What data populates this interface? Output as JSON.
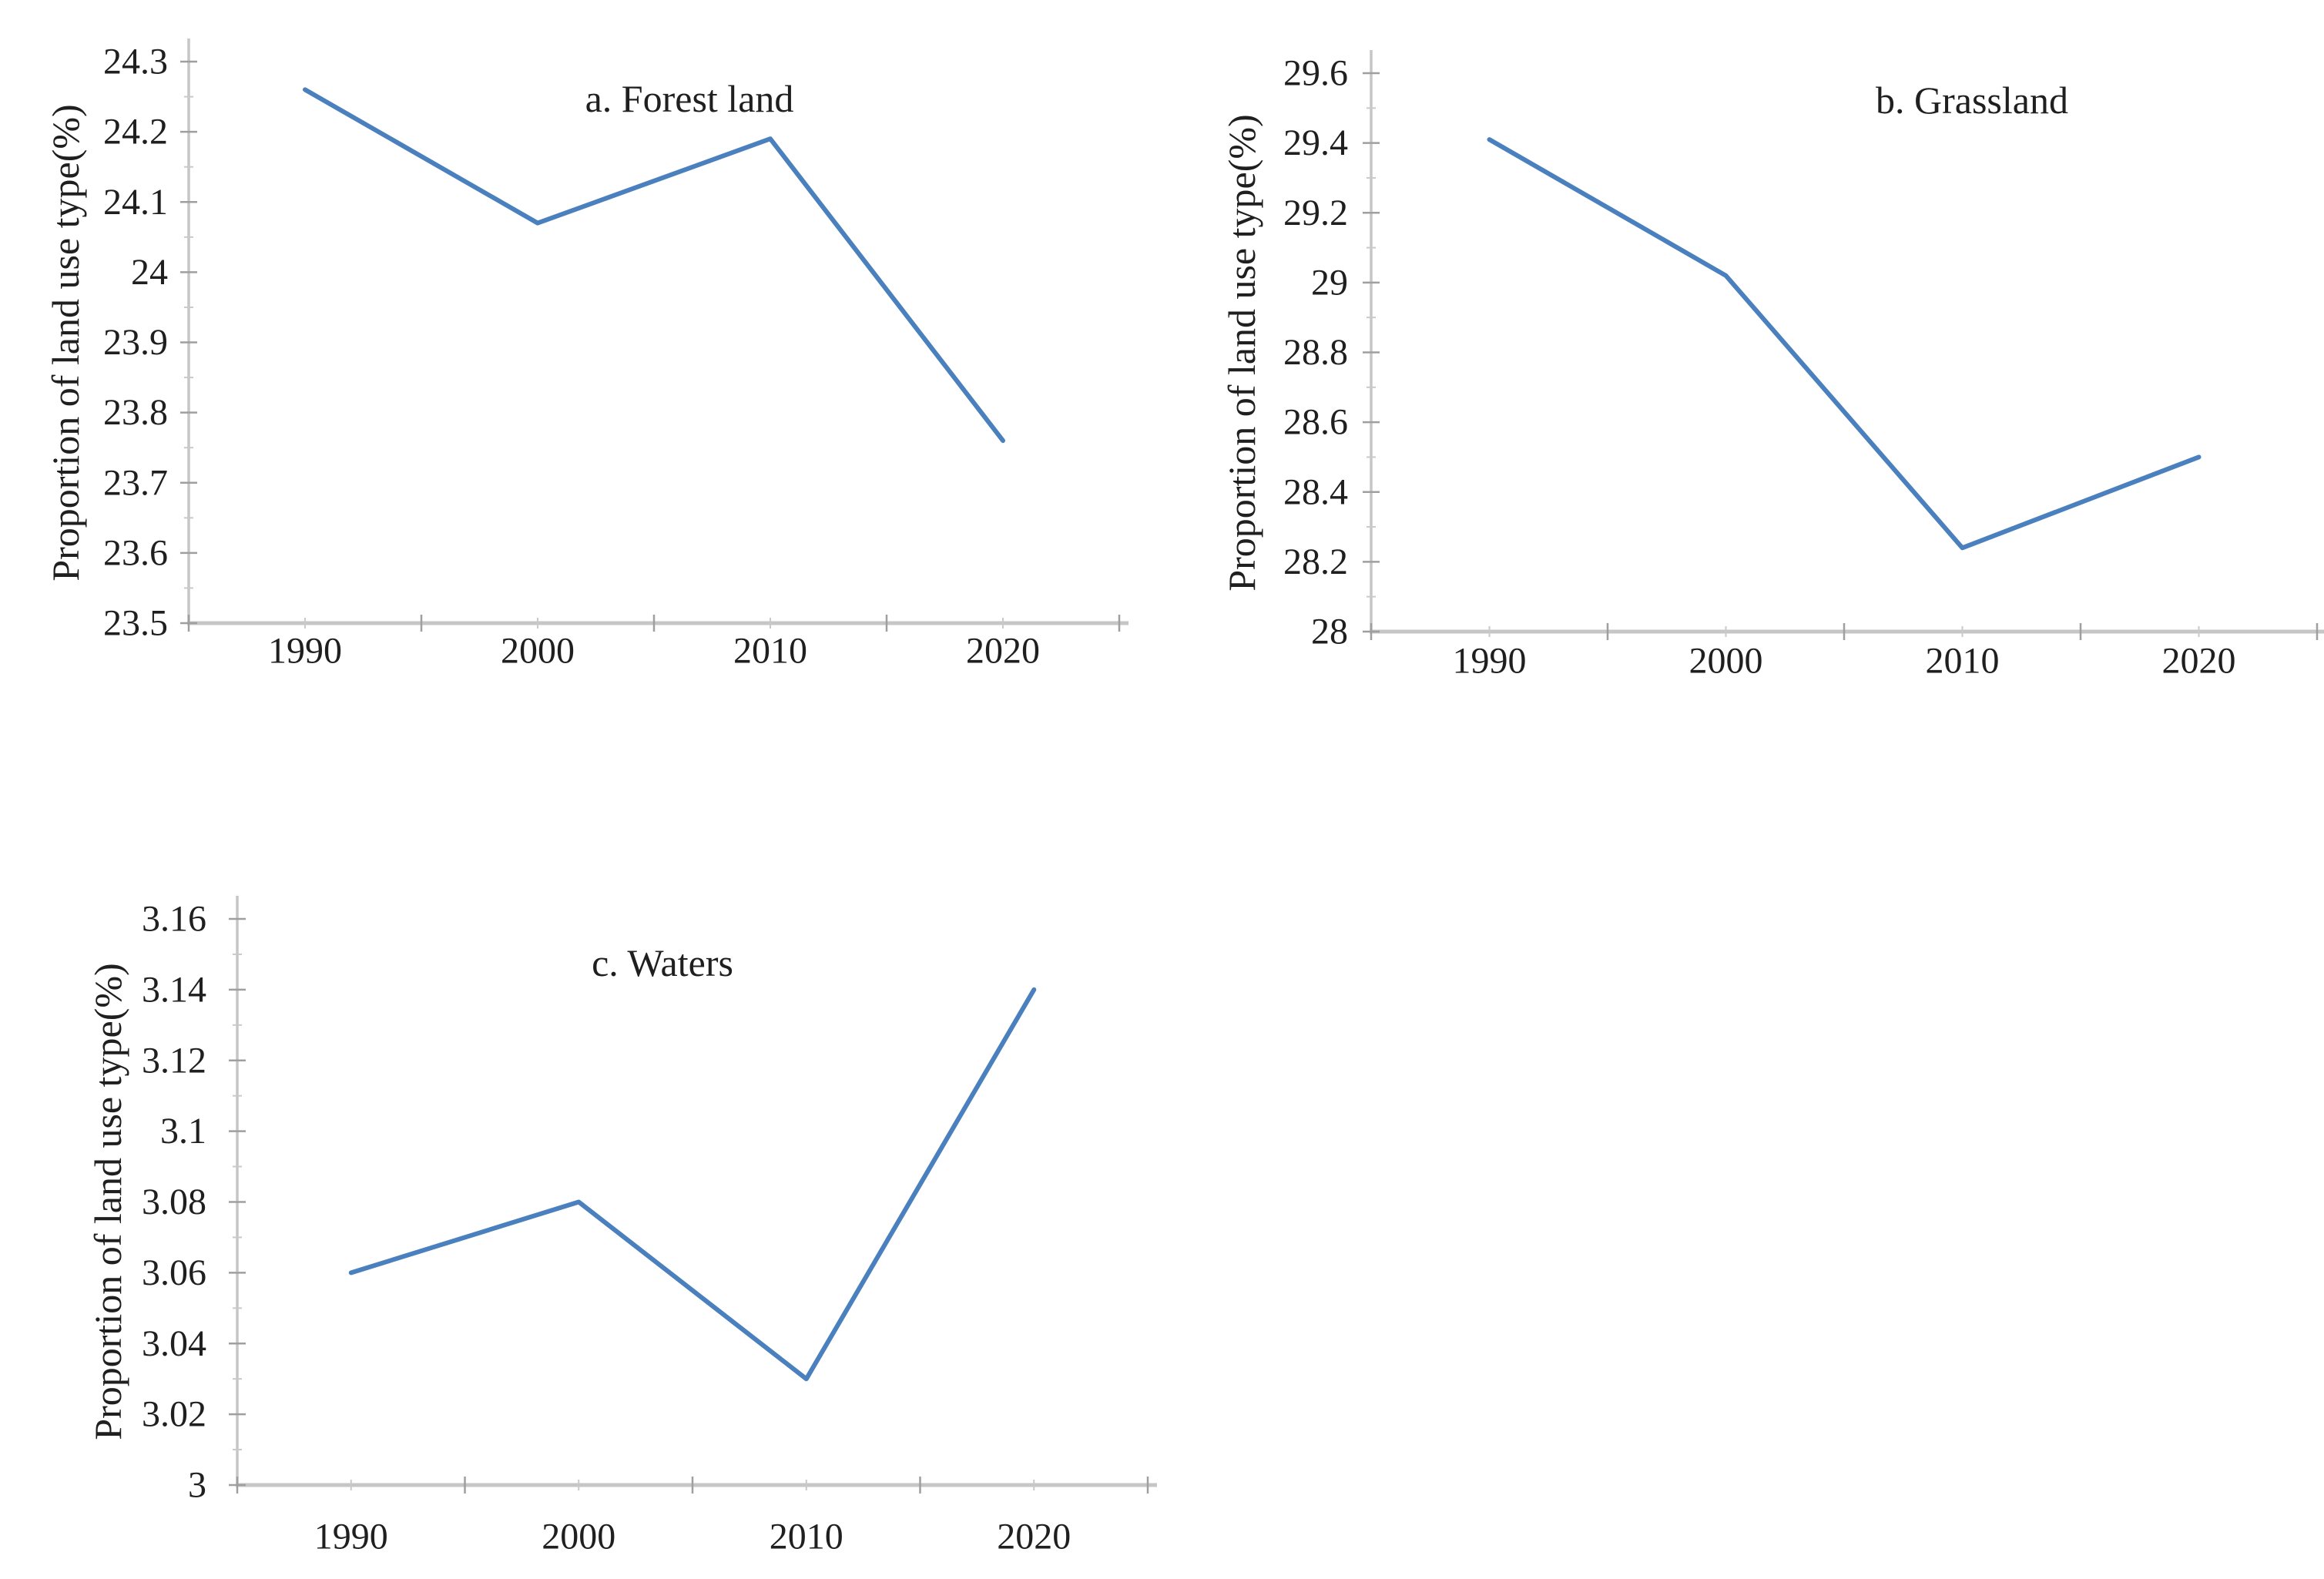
{
  "page": {
    "background": "#ffffff",
    "text_color": "#1f1f1f",
    "axis_color": "#c6c6c6",
    "tick_color": "#9f9f9f",
    "accent_line_color": "#4a80bd"
  },
  "chart_data": [
    {
      "type": "line",
      "panel": "a",
      "title": "a. Forest land",
      "ylabel": "Proportion of land use type(%)",
      "xlabel": "",
      "categories": [
        "1990",
        "2000",
        "2010",
        "2020"
      ],
      "values": [
        24.26,
        24.07,
        24.19,
        23.76
      ],
      "ylim": [
        23.5,
        24.3
      ],
      "ytick_labels": [
        "23.5",
        "23.6",
        "23.7",
        "23.8",
        "23.9",
        "24",
        "24.1",
        "24.2",
        "24.3"
      ],
      "line_color": "#4a80bd",
      "grid": false,
      "legend_position": "none"
    },
    {
      "type": "line",
      "panel": "b",
      "title": "b. Grassland",
      "ylabel": "Proportion of land use type(%)",
      "xlabel": "",
      "categories": [
        "1990",
        "2000",
        "2010",
        "2020"
      ],
      "values": [
        29.41,
        29.02,
        28.24,
        28.5
      ],
      "ylim": [
        28,
        29.6
      ],
      "ytick_labels": [
        "28",
        "28.2",
        "28.4",
        "28.6",
        "28.8",
        "29",
        "29.2",
        "29.4",
        "29.6"
      ],
      "line_color": "#4a80bd",
      "grid": false,
      "legend_position": "none"
    },
    {
      "type": "line",
      "panel": "c",
      "title": "c. Waters",
      "ylabel": "Proportion of land use type(%)",
      "xlabel": "",
      "categories": [
        "1990",
        "2000",
        "2010",
        "2020"
      ],
      "values": [
        3.06,
        3.08,
        3.03,
        3.14
      ],
      "ylim": [
        3,
        3.16
      ],
      "ytick_labels": [
        "3",
        "3.02",
        "3.04",
        "3.06",
        "3.08",
        "3.1",
        "3.12",
        "3.14",
        "3.16"
      ],
      "line_color": "#4a80bd",
      "grid": false,
      "legend_position": "none"
    }
  ]
}
